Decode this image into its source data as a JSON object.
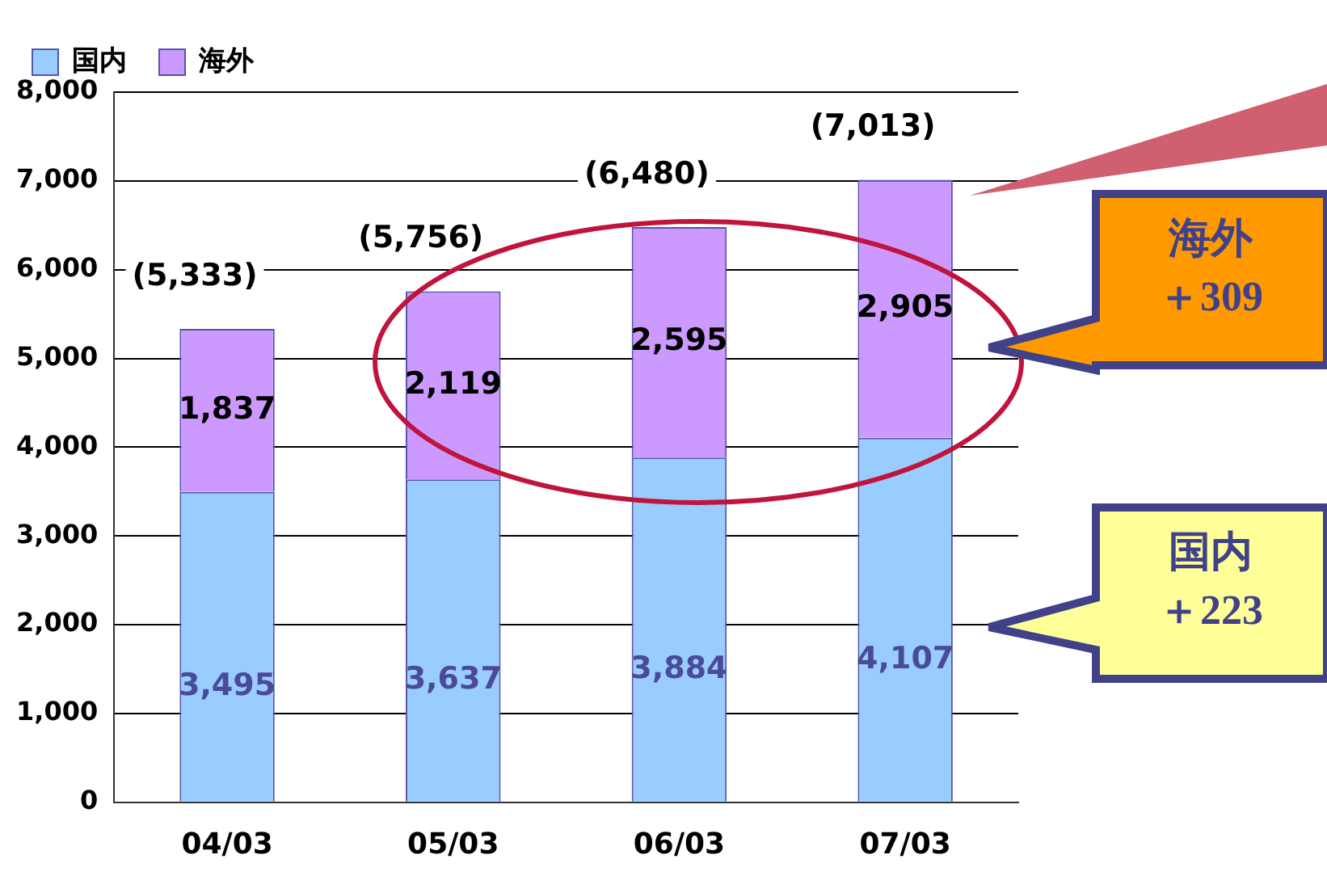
{
  "chart_data": {
    "type": "bar",
    "stacked": true,
    "categories": [
      "04/03",
      "05/03",
      "06/03",
      "07/03"
    ],
    "series": [
      {
        "name": "国内",
        "color": "#99ccff",
        "values": [
          3495,
          3637,
          3884,
          4107
        ],
        "value_labels": [
          "3,495",
          "3,637",
          "3,884",
          "4,107"
        ]
      },
      {
        "name": "海外",
        "color": "#cc99ff",
        "values": [
          1837,
          2119,
          2595,
          2905
        ],
        "value_labels": [
          "1,837",
          "2,119",
          "2,595",
          "2,905"
        ]
      }
    ],
    "totals": [
      "(5,333)",
      "(5,756)",
      "(6,480)",
      "(7,013)"
    ],
    "ylim": [
      0,
      8000
    ],
    "yticks": [
      0,
      {
        "value": 1000,
        "label": "1,000"
      },
      {
        "value": 2000,
        "label": "2,000"
      },
      {
        "value": 3000,
        "label": "3,000"
      },
      {
        "value": 4000,
        "label": "4,000"
      },
      {
        "value": 5000,
        "label": "5,000"
      },
      {
        "value": 6000,
        "label": "6,000"
      },
      {
        "value": 7000,
        "label": "7,000"
      },
      {
        "value": 8000,
        "label": "8,000"
      }
    ],
    "grid": "y",
    "legend": "top left",
    "annotations": [
      "海外＋309",
      "国内＋223"
    ]
  }
}
